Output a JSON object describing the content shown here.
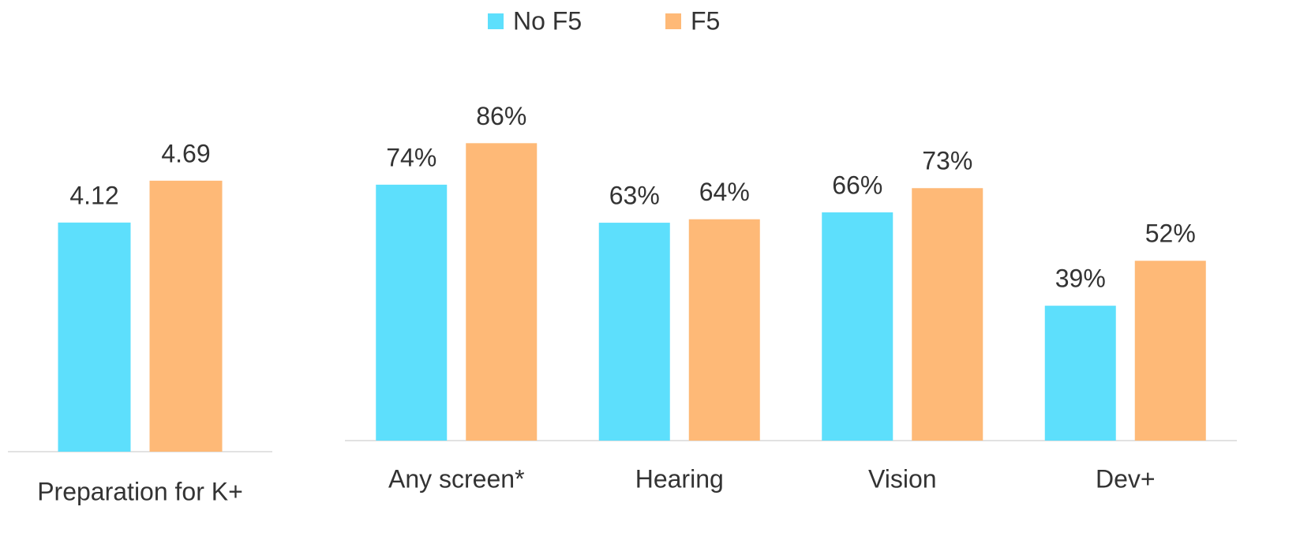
{
  "chart_data": [
    {
      "type": "bar",
      "categories": [
        "Preparation for K+"
      ],
      "series": [
        {
          "name": "No F5",
          "color": "#5ddffc",
          "values": [
            4.12
          ]
        },
        {
          "name": "F5",
          "color": "#feb977",
          "values": [
            4.69
          ]
        }
      ],
      "ylim": [
        1,
        5
      ]
    },
    {
      "type": "bar",
      "categories": [
        "Any screen*",
        "Hearing",
        "Vision",
        "Dev+"
      ],
      "series": [
        {
          "color": "#5ddffc",
          "values": [
            74,
            63,
            66,
            39
          ],
          "value_labels": [
            "74%",
            "63%",
            "66%",
            "39%"
          ]
        },
        {
          "color": "#feb977",
          "values": [
            86,
            64,
            73,
            52
          ],
          "value_labels": [
            "86%",
            "64%",
            "73%",
            "52%"
          ]
        }
      ],
      "ylim": [
        0,
        100
      ]
    }
  ]
}
